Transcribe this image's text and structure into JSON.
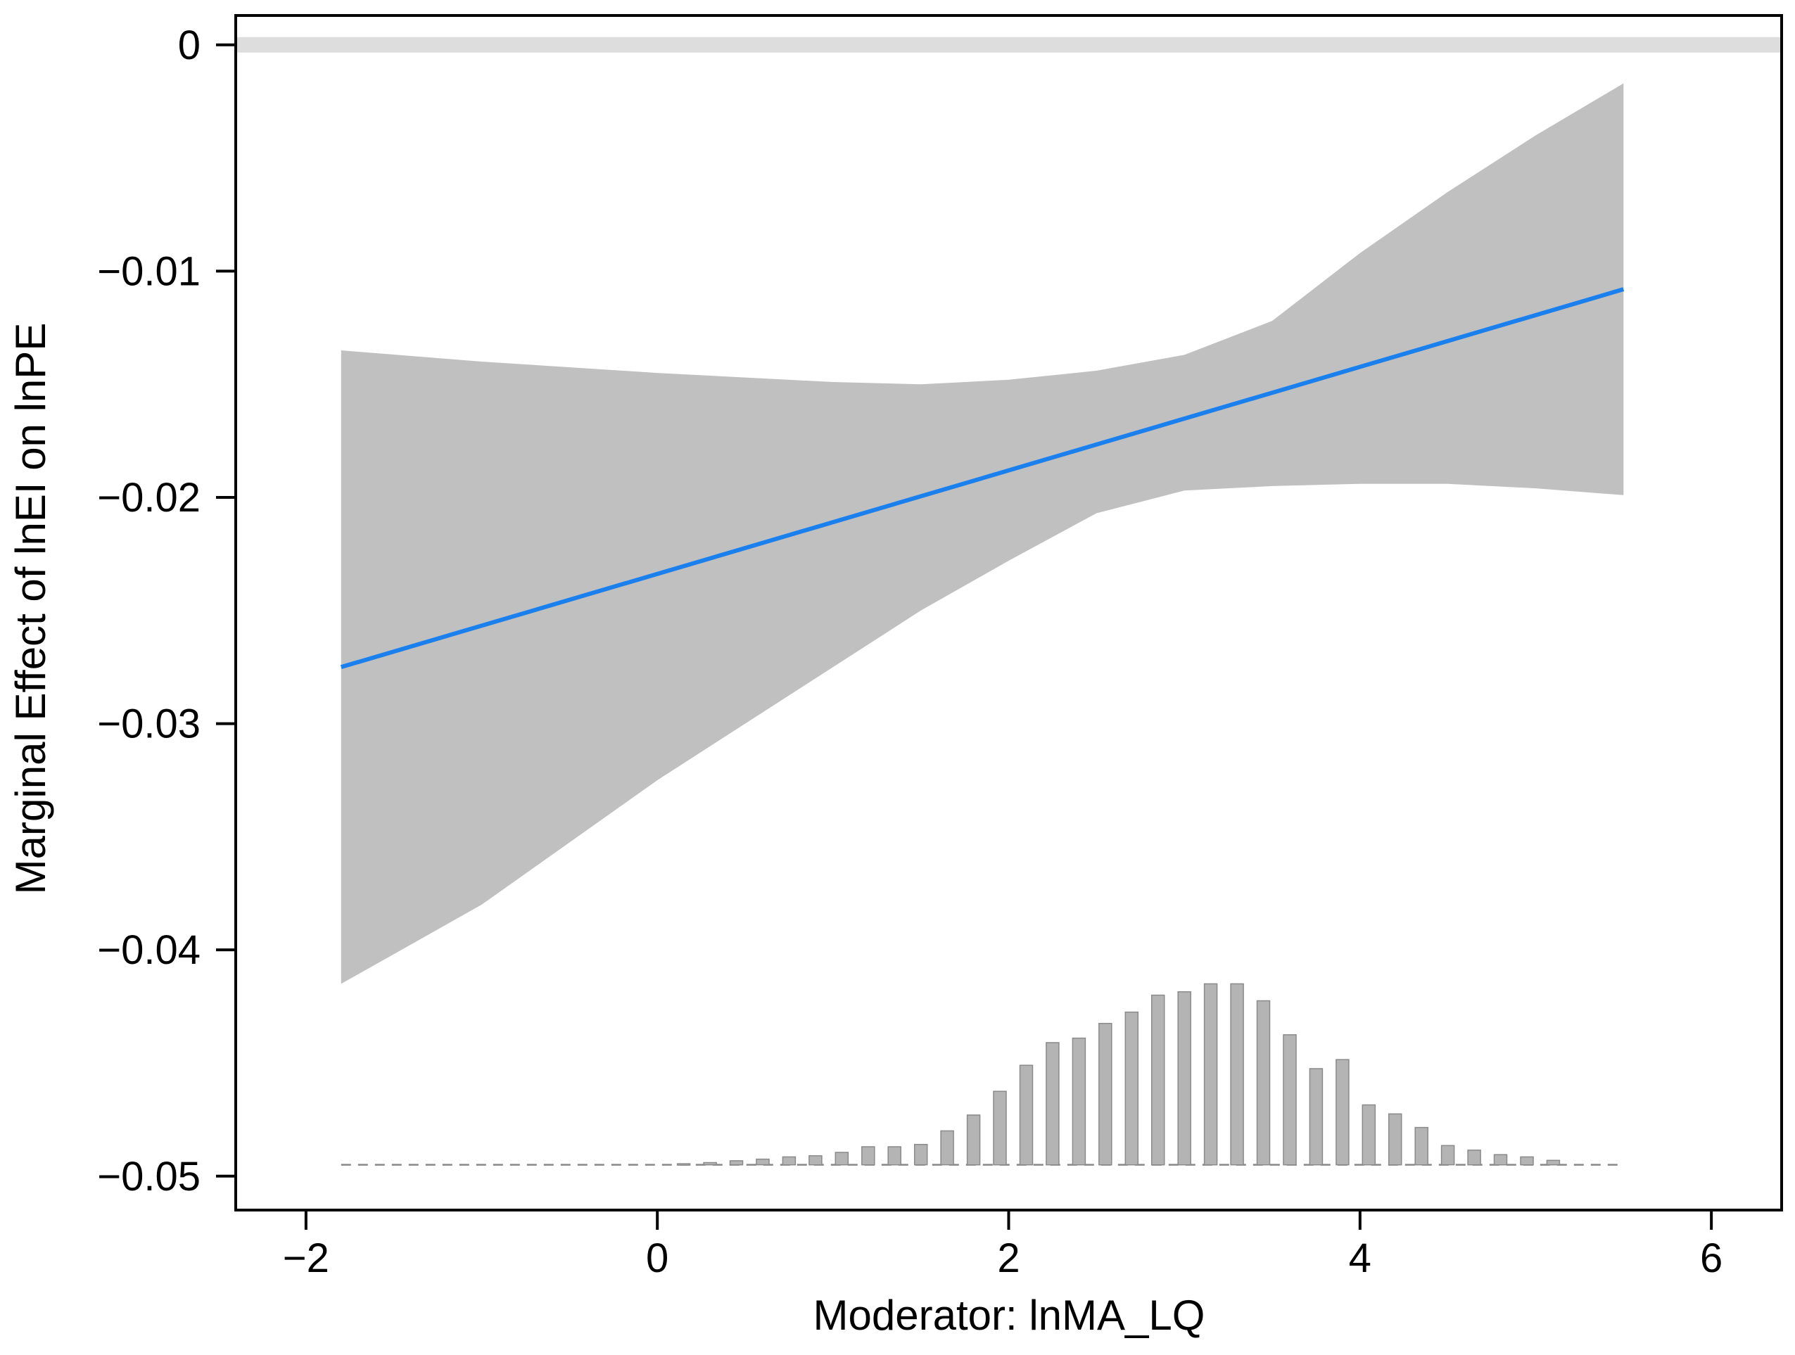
{
  "chart_data": {
    "type": "line",
    "title": "",
    "xlabel": "Moderator: lnMA_LQ",
    "ylabel": "Marginal Effect of lnEI on lnPE",
    "xlim": [
      -2.4,
      6.4
    ],
    "ylim": [
      -0.0515,
      0.0013
    ],
    "x_ticks": [
      -2,
      0,
      2,
      4,
      6
    ],
    "x_tick_labels": [
      "−2",
      "0",
      "2",
      "4",
      "6"
    ],
    "y_ticks": [
      0,
      -0.01,
      -0.02,
      -0.03,
      -0.04,
      -0.05
    ],
    "y_tick_labels": [
      "0",
      "−0.01",
      "−0.02",
      "−0.03",
      "−0.04",
      "−0.05"
    ],
    "reference_line": {
      "y": 0,
      "color": "#dddddd"
    },
    "colors": {
      "estimate": "#1a80ee",
      "ci_band": "#c0c0c0",
      "histogram": "#b4b4b4",
      "frame": "#000000"
    },
    "series": [
      {
        "name": "Marginal effect",
        "x": [
          -1.8,
          5.5
        ],
        "y": [
          -0.0275,
          -0.0108
        ]
      },
      {
        "name": "95% CI",
        "x": [
          -1.8,
          -1.0,
          0.0,
          1.0,
          1.5,
          2.0,
          2.5,
          3.0,
          3.5,
          4.0,
          4.5,
          5.0,
          5.5
        ],
        "upper": [
          -0.0135,
          -0.014,
          -0.0145,
          -0.0149,
          -0.015,
          -0.0148,
          -0.0144,
          -0.0137,
          -0.0122,
          -0.0092,
          -0.0065,
          -0.004,
          -0.0017
        ],
        "lower": [
          -0.0415,
          -0.038,
          -0.0325,
          -0.0275,
          -0.025,
          -0.0228,
          -0.0207,
          -0.0197,
          -0.0195,
          -0.0194,
          -0.0194,
          -0.0196,
          -0.0199
        ]
      }
    ],
    "histogram": {
      "baseline": -0.0495,
      "bins": [
        {
          "x": 0.15,
          "top": -0.04945
        },
        {
          "x": 0.3,
          "top": -0.0494
        },
        {
          "x": 0.45,
          "top": -0.04932
        },
        {
          "x": 0.6,
          "top": -0.04925
        },
        {
          "x": 0.75,
          "top": -0.04915
        },
        {
          "x": 0.9,
          "top": -0.0491
        },
        {
          "x": 1.05,
          "top": -0.04895
        },
        {
          "x": 1.2,
          "top": -0.0487
        },
        {
          "x": 1.35,
          "top": -0.0487
        },
        {
          "x": 1.5,
          "top": -0.0486
        },
        {
          "x": 1.65,
          "top": -0.048
        },
        {
          "x": 1.8,
          "top": -0.0473
        },
        {
          "x": 1.95,
          "top": -0.04625
        },
        {
          "x": 2.1,
          "top": -0.0451
        },
        {
          "x": 2.25,
          "top": -0.0441
        },
        {
          "x": 2.4,
          "top": -0.0439
        },
        {
          "x": 2.55,
          "top": -0.04325
        },
        {
          "x": 2.7,
          "top": -0.04275
        },
        {
          "x": 2.85,
          "top": -0.042
        },
        {
          "x": 3.0,
          "top": -0.04185
        },
        {
          "x": 3.15,
          "top": -0.0415
        },
        {
          "x": 3.3,
          "top": -0.0415
        },
        {
          "x": 3.45,
          "top": -0.04225
        },
        {
          "x": 3.6,
          "top": -0.04375
        },
        {
          "x": 3.75,
          "top": -0.04525
        },
        {
          "x": 3.9,
          "top": -0.04485
        },
        {
          "x": 4.05,
          "top": -0.04685
        },
        {
          "x": 4.2,
          "top": -0.04725
        },
        {
          "x": 4.35,
          "top": -0.04785
        },
        {
          "x": 4.5,
          "top": -0.04865
        },
        {
          "x": 4.65,
          "top": -0.04885
        },
        {
          "x": 4.8,
          "top": -0.04905
        },
        {
          "x": 4.95,
          "top": -0.04915
        },
        {
          "x": 5.1,
          "top": -0.0493
        }
      ]
    }
  }
}
